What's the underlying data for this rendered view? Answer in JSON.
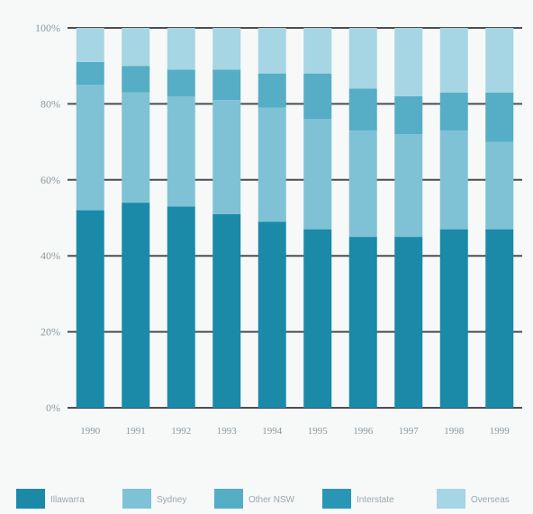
{
  "chart_data": {
    "type": "bar",
    "stacked": true,
    "categories": [
      "1990",
      "1991",
      "1992",
      "1993",
      "1994",
      "1995",
      "1996",
      "1997",
      "1998",
      "1999"
    ],
    "series": [
      {
        "name": "Illawarra",
        "color": "#1a8aa8",
        "values": [
          52,
          54,
          53,
          51,
          49,
          47,
          45,
          45,
          47,
          47
        ]
      },
      {
        "name": "Sydney",
        "color": "#7fc2d6",
        "values": [
          33,
          29,
          29,
          30,
          30,
          29,
          28,
          27,
          26,
          23
        ]
      },
      {
        "name": "Other NSW",
        "color": "#56adc6",
        "values": [
          6,
          7,
          7,
          8,
          9,
          12,
          11,
          10,
          10,
          13
        ]
      },
      {
        "name": "Interstate",
        "color": "#2a96b5",
        "values": [
          0,
          0,
          0,
          0,
          0,
          0,
          0,
          0,
          0,
          0
        ]
      },
      {
        "name": "Overseas",
        "color": "#a6d5e3",
        "values": [
          9,
          10,
          11,
          11,
          12,
          12,
          16,
          18,
          17,
          17
        ]
      }
    ],
    "yticks": [
      "0%",
      "20%",
      "40%",
      "60%",
      "80%",
      "100%"
    ],
    "ylim": [
      0,
      100
    ],
    "grid": true,
    "legend": "bottom",
    "title": "",
    "xlabel": "",
    "ylabel": ""
  }
}
